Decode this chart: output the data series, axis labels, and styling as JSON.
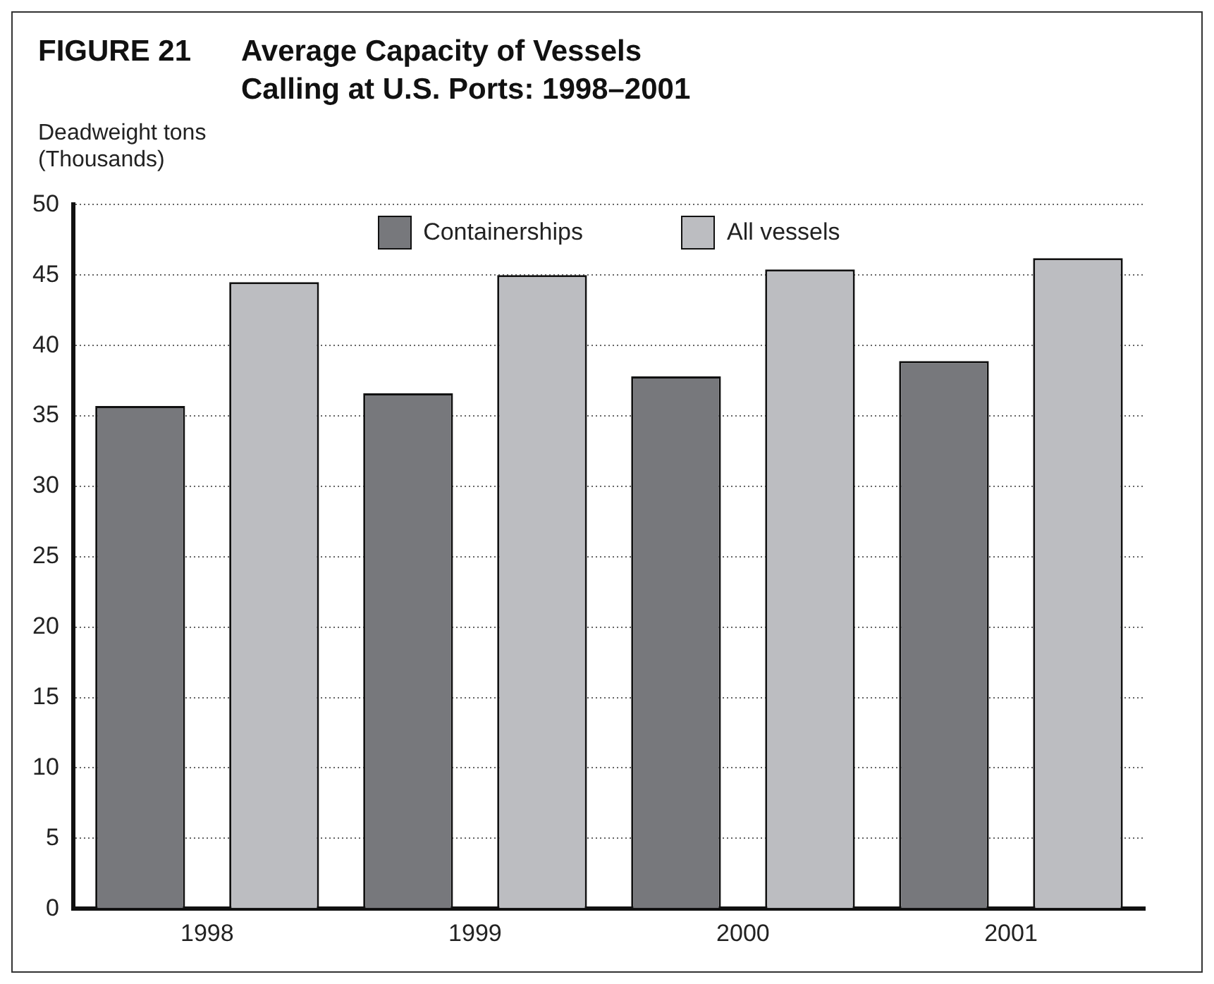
{
  "chart_data": {
    "type": "bar",
    "title": "Average Capacity of Vessels Calling at U.S. Ports: 1998–2001",
    "annotations": [
      "FIGURE 21"
    ],
    "ylabel": "Deadweight tons (Thousands)",
    "categories": [
      "1998",
      "1999",
      "2000",
      "2001"
    ],
    "series": [
      {
        "name": "Containerships",
        "color": "#77787c",
        "values": [
          35.7,
          36.6,
          37.8,
          38.9
        ]
      },
      {
        "name": "All vessels",
        "color": "#bcbdc1",
        "values": [
          44.5,
          45.0,
          45.4,
          46.2
        ]
      }
    ],
    "ylim": [
      0,
      50
    ],
    "yticks": [
      0,
      5,
      10,
      15,
      20,
      25,
      30,
      35,
      40,
      45,
      50
    ],
    "grid": "y",
    "legend": "top"
  }
}
